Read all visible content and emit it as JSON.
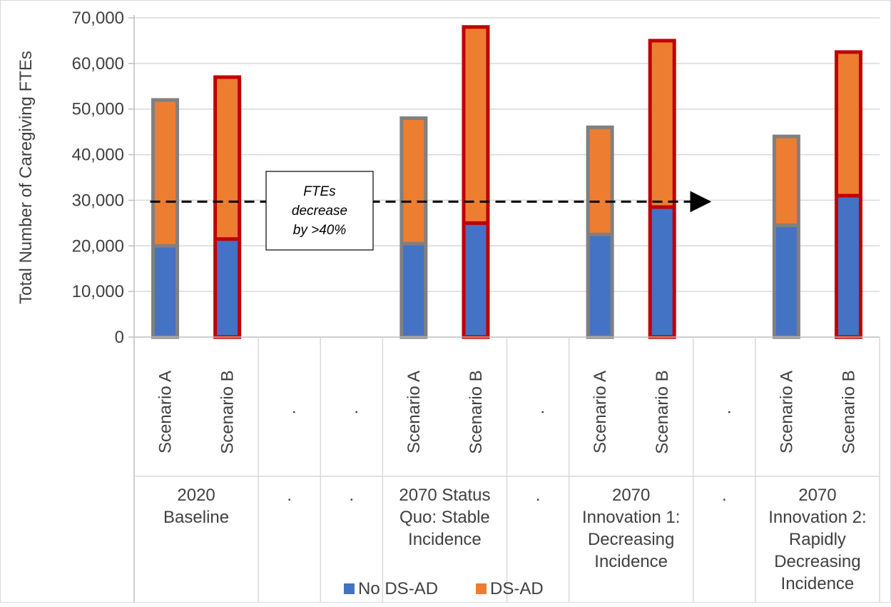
{
  "chart_data": {
    "type": "bar",
    "stacked": true,
    "ylabel": "Total Number of Caregiving FTEs",
    "xlabel": "",
    "ylim": [
      0,
      70000
    ],
    "yticks": [
      0,
      10000,
      20000,
      30000,
      40000,
      50000,
      60000,
      70000
    ],
    "ytick_labels": [
      "0",
      "10,000",
      "20,000",
      "30,000",
      "40,000",
      "50,000",
      "60,000",
      "70,000"
    ],
    "grid": true,
    "legend_position": "bottom",
    "series": [
      {
        "name": "No DS-AD",
        "color": "#4472c4"
      },
      {
        "name": "DS-AD",
        "color": "#ed7d31"
      }
    ],
    "groups": [
      {
        "label": "2020\nBaseline",
        "bars": [
          {
            "label": "Scenario A",
            "no_ds_ad": 20000,
            "ds_ad": 32000,
            "outline": "#808080"
          },
          {
            "label": "Scenario B",
            "no_ds_ad": 21500,
            "ds_ad": 35500,
            "outline": "#c00000"
          }
        ]
      },
      {
        "label": ".",
        "bars": [
          {
            "label": ".",
            "no_ds_ad": 0,
            "ds_ad": 0,
            "outline": ""
          }
        ]
      },
      {
        "label": ".",
        "bars": [
          {
            "label": ".",
            "no_ds_ad": 0,
            "ds_ad": 0,
            "outline": ""
          }
        ]
      },
      {
        "label": "2070 Status\nQuo: Stable\nIncidence",
        "bars": [
          {
            "label": "Scenario A",
            "no_ds_ad": 20500,
            "ds_ad": 27500,
            "outline": "#808080"
          },
          {
            "label": "Scenario B",
            "no_ds_ad": 25000,
            "ds_ad": 43000,
            "outline": "#c00000"
          }
        ]
      },
      {
        "label": ".",
        "bars": [
          {
            "label": ".",
            "no_ds_ad": 0,
            "ds_ad": 0,
            "outline": ""
          }
        ]
      },
      {
        "label": "2070\nInnovation 1:\nDecreasing\nIncidence",
        "bars": [
          {
            "label": "Scenario A",
            "no_ds_ad": 22500,
            "ds_ad": 23500,
            "outline": "#808080"
          },
          {
            "label": "Scenario B",
            "no_ds_ad": 28500,
            "ds_ad": 36500,
            "outline": "#c00000"
          }
        ]
      },
      {
        "label": ".",
        "bars": [
          {
            "label": ".",
            "no_ds_ad": 0,
            "ds_ad": 0,
            "outline": ""
          }
        ]
      },
      {
        "label": "2070\nInnovation 2:\nRapidly\nDecreasing\nIncidence",
        "bars": [
          {
            "label": "Scenario A",
            "no_ds_ad": 24500,
            "ds_ad": 19500,
            "outline": "#808080"
          },
          {
            "label": "Scenario B",
            "no_ds_ad": 31000,
            "ds_ad": 31500,
            "outline": "#c00000"
          }
        ]
      }
    ],
    "annotation": {
      "text": "FTEs\ndecrease\nby >40%",
      "arrow_value": 29700,
      "arrow_from": "2020 Baseline Scenario A",
      "arrow_to": "2070 Innovation 2 Scenario A"
    }
  }
}
